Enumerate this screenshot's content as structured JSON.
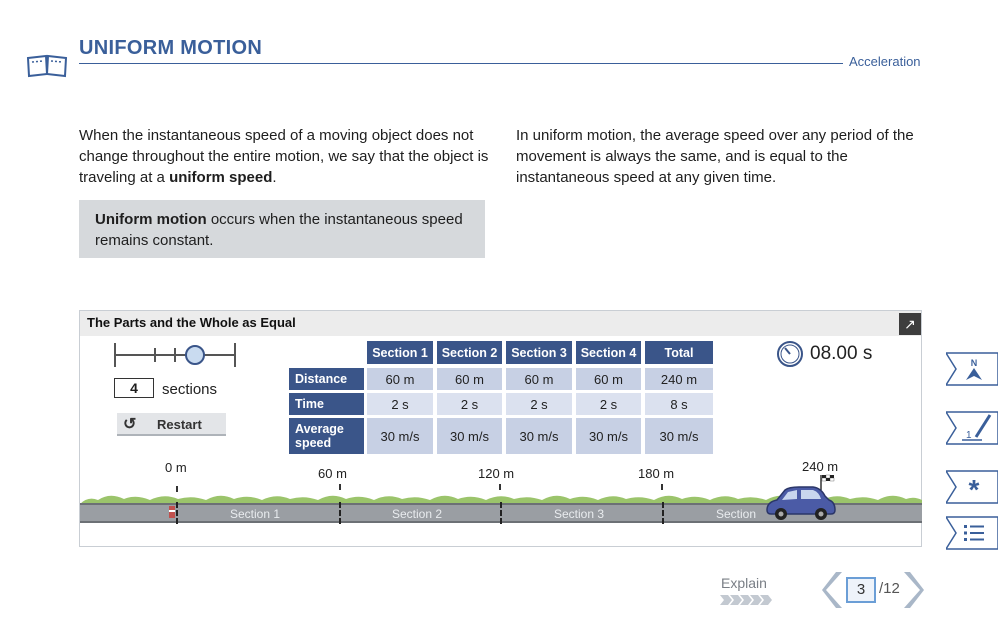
{
  "header": {
    "title": "UNIFORM MOTION",
    "subject": "Acceleration"
  },
  "body": {
    "left_paragraph": [
      "When the instantaneous speed of a moving object does not change throughout the entire motion, we say that the object is traveling at a ",
      "uniform speed",
      "."
    ],
    "right_paragraph": "In uniform motion, the average speed over any period of the movement is always the same, and is equal to the instantaneous speed at any given time.",
    "definition": [
      "Uniform motion",
      " occurs when the instantaneous speed remains constant."
    ]
  },
  "simulation": {
    "title": "The Parts and the Whole as Equal",
    "expand_icon": "expand-arrow-icon",
    "slider_value": 4,
    "sections_value": "4",
    "sections_label": "sections",
    "restart_label": "Restart",
    "timer": "08.00 s",
    "table": {
      "columns": [
        "Section 1",
        "Section 2",
        "Section 3",
        "Section 4",
        "Total"
      ],
      "rows": [
        {
          "label": "Distance",
          "values": [
            "60 m",
            "60 m",
            "60 m",
            "60 m",
            "240 m"
          ]
        },
        {
          "label": "Time",
          "values": [
            "2 s",
            "2 s",
            "2 s",
            "2 s",
            "8 s"
          ]
        },
        {
          "label": "Average speed",
          "values": [
            "30 m/s",
            "30 m/s",
            "30 m/s",
            "30 m/s",
            "30 m/s"
          ]
        }
      ]
    },
    "track": {
      "marks": [
        "0 m",
        "60 m",
        "120 m",
        "180 m",
        "240 m"
      ],
      "sections": [
        "Section 1",
        "Section 2",
        "Section 3",
        "Section"
      ]
    }
  },
  "rail": [
    "compass-icon",
    "notebook-pencil-icon",
    "asterisk-icon",
    "list-icon"
  ],
  "footer": {
    "explain": "Explain",
    "current_page": "3",
    "total_pages": "/12"
  },
  "colors": {
    "accent": "#3a5f9a",
    "table_header": "#3a5589",
    "table_cell": "#c7d0e4"
  }
}
